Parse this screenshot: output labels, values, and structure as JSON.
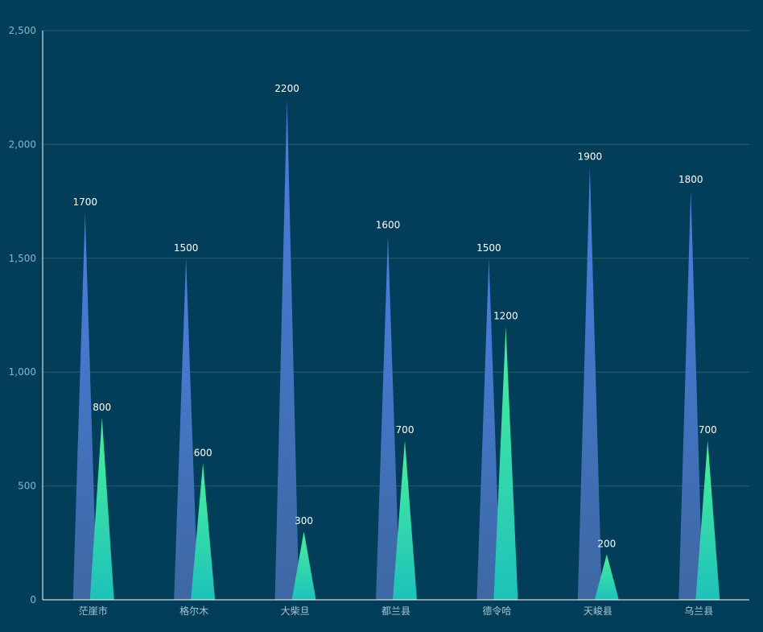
{
  "colors": {
    "background": "#023e5a",
    "grid": "#2e5b6d",
    "axis": "#ffffff",
    "series_1_top": "#4a7fe0",
    "series_1_bottom": "#3d68a3",
    "series_2_top": "#4af09a",
    "series_2_bottom": "#1ec1bb"
  },
  "chart_data": {
    "type": "bar",
    "bar_shape": "triangle",
    "categories": [
      "茫崖市",
      "格尔木",
      "大柴旦",
      "都兰县",
      "德令哈",
      "天峻县",
      "乌兰县"
    ],
    "series": [
      {
        "values": [
          1700,
          1500,
          2200,
          1600,
          1500,
          1900,
          1800
        ]
      },
      {
        "values": [
          800,
          600,
          300,
          700,
          1200,
          200,
          700
        ]
      }
    ],
    "ylim": [
      0,
      2500
    ],
    "y_ticks": [
      0,
      500,
      1000,
      1500,
      2000,
      2500
    ],
    "y_tick_labels": [
      "0",
      "500",
      "1,000",
      "1,500",
      "2,000",
      "2,500"
    ],
    "grid": true,
    "legend": "none",
    "title": "",
    "xlabel": "",
    "ylabel": ""
  }
}
